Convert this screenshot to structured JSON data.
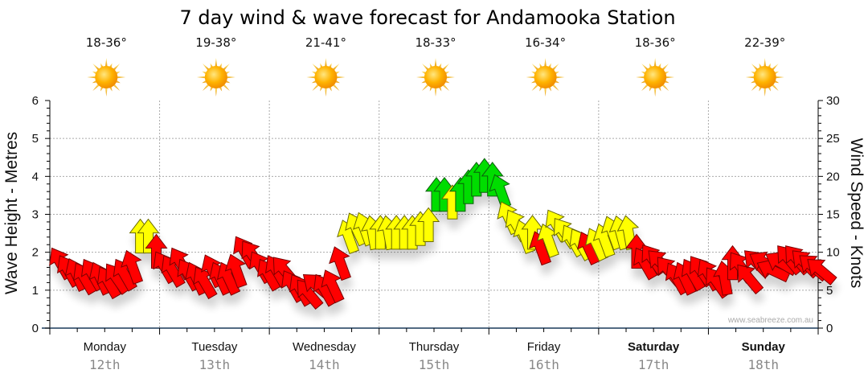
{
  "chart_data": {
    "type": "scatter",
    "title": "7 day wind & wave forecast for Andamooka Station",
    "ylabel_left": "Wave Height - Metres",
    "ylabel_right": "Wind Speed - Knots",
    "ylim_left": [
      0,
      6
    ],
    "ylim_right": [
      0,
      30
    ],
    "yticks_left": [
      "0",
      "1",
      "2",
      "3",
      "4",
      "5",
      "6"
    ],
    "yticks_right": [
      "0",
      "5",
      "10",
      "15",
      "20",
      "25",
      "30"
    ],
    "grid": true,
    "watermark": "www.seabreeze.com.au",
    "days": [
      {
        "name": "Monday",
        "date": "12th",
        "bold": false,
        "temp": "18-36°",
        "icon": "sun-icon"
      },
      {
        "name": "Tuesday",
        "date": "13th",
        "bold": false,
        "temp": "19-38°",
        "icon": "sun-icon"
      },
      {
        "name": "Wednesday",
        "date": "14th",
        "bold": false,
        "temp": "21-41°",
        "icon": "sun-icon"
      },
      {
        "name": "Thursday",
        "date": "15th",
        "bold": false,
        "temp": "18-33°",
        "icon": "sun-icon"
      },
      {
        "name": "Friday",
        "date": "16th",
        "bold": false,
        "temp": "16-34°",
        "icon": "sun-icon"
      },
      {
        "name": "Saturday",
        "date": "17th",
        "bold": true,
        "temp": "18-36°",
        "icon": "sun-icon"
      },
      {
        "name": "Sunday",
        "date": "18th",
        "bold": true,
        "temp": "22-39°",
        "icon": "sun-icon"
      }
    ],
    "wind_series": {
      "name": "Wind Speed (knots)",
      "interval_hours": 2,
      "color_scale": [
        {
          "max": 12,
          "color": "#ff0000"
        },
        {
          "max": 18,
          "color": "#ffff00"
        },
        {
          "max": 30,
          "color": "#00dd00"
        }
      ],
      "speed": [
        10,
        9,
        8.5,
        8,
        8.5,
        8,
        7.5,
        8,
        8.5,
        9.5,
        13.5,
        13.5,
        11.5,
        9.5,
        9,
        10,
        8.5,
        8,
        7.5,
        9,
        8,
        8,
        9,
        11.5,
        11,
        9.5,
        8.5,
        9,
        9,
        7,
        6.5,
        6,
        7,
        6.5,
        7,
        10,
        13.5,
        14.5,
        14.5,
        14,
        14,
        14,
        14,
        14,
        14,
        14.5,
        15,
        19,
        19,
        18,
        19,
        20,
        21,
        21.5,
        21,
        19.5,
        16,
        15,
        13.5,
        14,
        12,
        13,
        15,
        14,
        13,
        12.5,
        12,
        12.5,
        13,
        14,
        14,
        14,
        11.5,
        10,
        10.5,
        10,
        9,
        8,
        8,
        8.5,
        9,
        8.5,
        7.5,
        8,
        10,
        9.5,
        8,
        10,
        10,
        9,
        10,
        10.5,
        10.5,
        10,
        9.5,
        9
      ],
      "heading_deg": [
        -30,
        -30,
        -25,
        -30,
        -30,
        -25,
        -30,
        -35,
        -30,
        -20,
        0,
        0,
        0,
        -30,
        -30,
        -30,
        -30,
        -25,
        -30,
        -25,
        -25,
        -25,
        -20,
        -30,
        -35,
        -30,
        -30,
        -30,
        -40,
        -30,
        -30,
        -40,
        -50,
        -30,
        -25,
        -20,
        -20,
        -25,
        -20,
        -10,
        0,
        -10,
        0,
        0,
        0,
        0,
        0,
        0,
        0,
        0,
        0,
        0,
        0,
        0,
        0,
        -20,
        -25,
        -30,
        -20,
        0,
        -20,
        -20,
        -30,
        -35,
        -30,
        -30,
        -25,
        -25,
        -20,
        -20,
        -15,
        -10,
        0,
        -30,
        -35,
        -45,
        -40,
        -30,
        -25,
        -30,
        -35,
        -30,
        -35,
        -10,
        0,
        -35,
        -40,
        -45,
        -60,
        -65,
        -60,
        -40,
        -40,
        -45,
        -50,
        -50
      ]
    },
    "wave_series": {
      "name": "Wave Height (metres)",
      "values": []
    }
  }
}
